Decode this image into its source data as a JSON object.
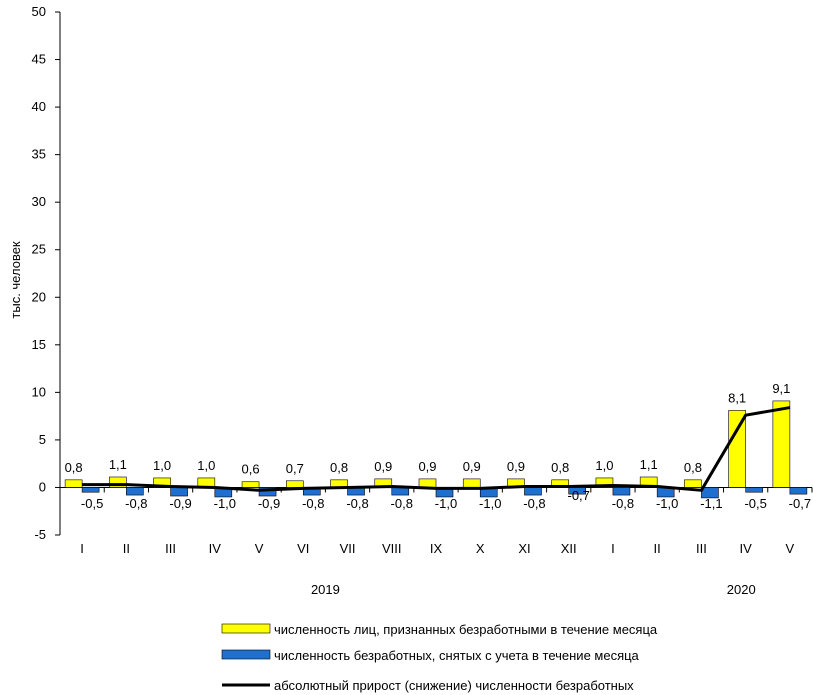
{
  "chart_data": {
    "type": "bar",
    "ylabel": "тыс. человек",
    "ylim": [
      -5,
      50
    ],
    "y_ticks": [
      "-5",
      "0",
      "5",
      "10",
      "15",
      "20",
      "25",
      "30",
      "35",
      "40",
      "45",
      "50"
    ],
    "y_tick_values": [
      -5,
      0,
      5,
      10,
      15,
      20,
      25,
      30,
      35,
      40,
      45,
      50
    ],
    "categories": [
      "I",
      "II",
      "III",
      "IV",
      "V",
      "VI",
      "VII",
      "VIII",
      "IX",
      "X",
      "XI",
      "XII",
      "I",
      "II",
      "III",
      "IV",
      "V"
    ],
    "year_groups": [
      {
        "label": "2019",
        "from": 0,
        "to": 11
      },
      {
        "label": "2020",
        "from": 12,
        "to": 16
      }
    ],
    "grid": false,
    "legend_position": "bottom",
    "series": [
      {
        "name": "численность лиц, признанных безработными в течение месяца",
        "type": "bar",
        "color": "#ffff00",
        "values": [
          0.8,
          1.1,
          1.0,
          1.0,
          0.6,
          0.7,
          0.8,
          0.9,
          0.9,
          0.9,
          0.9,
          0.8,
          1.0,
          1.1,
          0.8,
          8.1,
          9.1
        ],
        "labels": [
          "0,8",
          "1,1",
          "1,0",
          "1,0",
          "0,6",
          "0,7",
          "0,8",
          "0,9",
          "0,9",
          "0,9",
          "0,9",
          "0,8",
          "1,0",
          "1,1",
          "0,8",
          "8,1",
          "9,1"
        ]
      },
      {
        "name": "численность безработных, снятых с учета в течение месяца",
        "type": "bar",
        "color": "#1f6fd1",
        "values": [
          -0.5,
          -0.8,
          -0.9,
          -1.0,
          -0.9,
          -0.8,
          -0.8,
          -0.8,
          -1.0,
          -1.0,
          -0.8,
          -0.7,
          -0.8,
          -1.0,
          -1.1,
          -0.5,
          -0.7
        ],
        "labels": [
          "-0,5",
          "-0,8",
          "-0,9",
          "-1,0",
          "-0,9",
          "-0,8",
          "-0,8",
          "-0,8",
          "-1,0",
          "-1,0",
          "-0,8",
          "-0,7",
          "-0,8",
          "-1,0",
          "-1,1",
          "-0,5",
          "-0,7"
        ]
      },
      {
        "name": "абсолютный прирост (снижение) численности безработных",
        "type": "line",
        "color": "#000000",
        "values": [
          0.3,
          0.3,
          0.1,
          0.0,
          -0.3,
          -0.1,
          0.0,
          0.1,
          -0.1,
          -0.1,
          0.1,
          0.1,
          0.2,
          0.1,
          -0.3,
          7.6,
          8.4
        ]
      }
    ]
  }
}
